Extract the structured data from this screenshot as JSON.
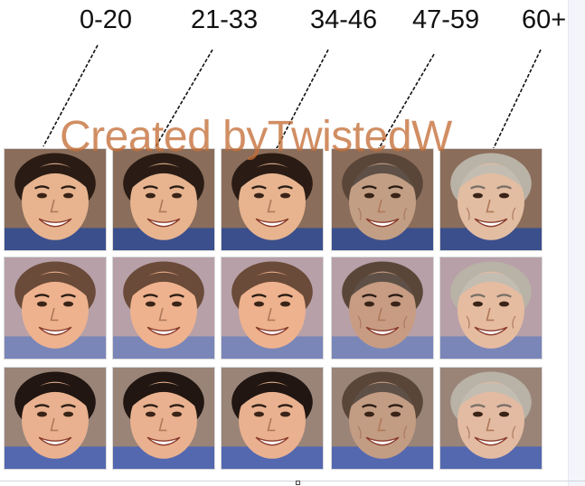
{
  "age_groups": [
    {
      "label": "0-20"
    },
    {
      "label": "21-33"
    },
    {
      "label": "34-46"
    },
    {
      "label": "47-59"
    },
    {
      "label": "60+"
    }
  ],
  "watermark": "Created byTwistedW",
  "rows": [
    {
      "skin": "#e7b48f",
      "hair": "#2a1c14",
      "shirt": "#3b4f8c",
      "bg": "#8a6d5a"
    },
    {
      "skin": "#eeb28e",
      "hair": "#6a4a38",
      "shirt": "#7a86b8",
      "bg": "#b7a0a8"
    },
    {
      "skin": "#e9b18f",
      "hair": "#211611",
      "shirt": "#5468b0",
      "bg": "#9a8478"
    }
  ],
  "aging_tint": [
    "#000000",
    "#1a1a1a",
    "#2a2a2a",
    "#6a6a6a",
    "#d8d2c8"
  ],
  "colors": {
    "watermark": "#c46e37",
    "labels": "#111111"
  }
}
